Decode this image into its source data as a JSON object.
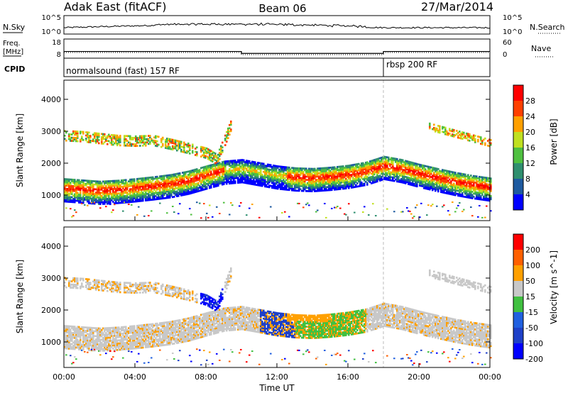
{
  "chart_data": [
    {
      "type": "table",
      "header": {
        "station": "Adak East (fitACF)",
        "beam": "Beam 06",
        "date": "27/Mar/2014"
      },
      "nsky": {
        "label": "N.Sky",
        "right_label": "N.Search",
        "ytick_top": "10^5",
        "ytick_bottom": "10^0",
        "right_ytick_top": "10^5",
        "right_ytick_bottom": "10^0"
      },
      "freq": {
        "label_line1": "Freq.",
        "label_line2": "[MHz]",
        "right_label": "Nave",
        "yticks": [
          "18",
          "8"
        ],
        "right_yticks": [
          "60",
          "0"
        ],
        "segments": [
          {
            "start_hour": 0,
            "end_hour": 10,
            "value": 11.5
          },
          {
            "start_hour": 10,
            "end_hour": 18,
            "value": 10.5
          },
          {
            "start_hour": 18,
            "end_hour": 24,
            "value": 11.5
          }
        ]
      },
      "cpid": {
        "label": "CPID",
        "segments": [
          {
            "start_hour": 0,
            "end_hour": 18,
            "name": "normalsound (fast) 157 RF"
          },
          {
            "start_hour": 18,
            "end_hour": 24,
            "name": "rbsp 200 RF"
          }
        ]
      }
    },
    {
      "type": "heatmap",
      "ylabel": "Slant Range [km]",
      "yticks": [
        1000,
        2000,
        3000,
        4000
      ],
      "ylim": [
        200,
        4600
      ],
      "colorbar_label": "Power [dB]",
      "colorbar_ticks": [
        "28",
        "24",
        "20",
        "16",
        "12",
        "8",
        "4"
      ],
      "colors": [
        "#0000ff",
        "#1e5aa0",
        "#2f8f6f",
        "#4fc040",
        "#c0e020",
        "#ffa000",
        "#ff4000",
        "#ff0000"
      ],
      "bands": [
        {
          "name": "lower",
          "points": [
            [
              0,
              1200
            ],
            [
              1,
              1160
            ],
            [
              2,
              1120
            ],
            [
              3,
              1150
            ],
            [
              4,
              1200
            ],
            [
              5,
              1260
            ],
            [
              6,
              1330
            ],
            [
              7,
              1440
            ],
            [
              8,
              1600
            ],
            [
              9,
              1750
            ],
            [
              10,
              1800
            ],
            [
              11,
              1700
            ],
            [
              12,
              1600
            ],
            [
              13,
              1540
            ],
            [
              14,
              1520
            ],
            [
              15,
              1560
            ],
            [
              16,
              1620
            ],
            [
              17,
              1720
            ],
            [
              18,
              1900
            ],
            [
              19,
              1800
            ],
            [
              20,
              1650
            ],
            [
              21,
              1520
            ],
            [
              22,
              1400
            ],
            [
              23,
              1300
            ],
            [
              24,
              1220
            ]
          ]
        },
        {
          "name": "upper",
          "points": [
            [
              0,
              2850
            ],
            [
              1,
              2820
            ],
            [
              2,
              2760
            ],
            [
              3,
              2700
            ],
            [
              4,
              2680
            ],
            [
              5,
              2700
            ],
            [
              6,
              2580
            ],
            [
              7,
              2450
            ],
            [
              8,
              2300
            ],
            [
              8.6,
              2100
            ],
            [
              9.4,
              3200
            ]
          ]
        }
      ]
    },
    {
      "type": "heatmap",
      "ylabel": "Slant Range [km]",
      "yticks": [
        1000,
        2000,
        3000,
        4000
      ],
      "ylim": [
        200,
        4600
      ],
      "colorbar_label": "Velocity [m s^-1]",
      "colorbar_ticks": [
        "200",
        "100",
        "50",
        "15",
        "-15",
        "-50",
        "-100",
        "-200"
      ],
      "colors": [
        "#0000ff",
        "#1e40c8",
        "#2060e0",
        "#40c040",
        "#c8c8c8",
        "#ffa000",
        "#ff6000",
        "#ff0000"
      ],
      "xticks": [
        "00:00",
        "04:00",
        "08:00",
        "12:00",
        "16:00",
        "20:00",
        "00:00"
      ],
      "xlabel": "Time UT",
      "xlim": [
        0,
        24
      ]
    }
  ]
}
